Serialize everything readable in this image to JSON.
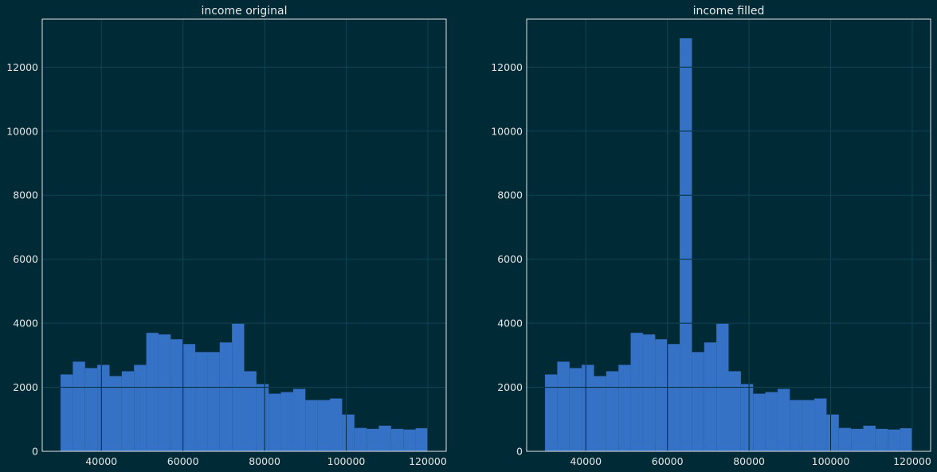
{
  "colors": {
    "background": "#002b36",
    "bar": "#3572c6",
    "grid": "#0f4553",
    "text": "#e6e6e6"
  },
  "chart_data": [
    {
      "type": "bar",
      "title": "income original",
      "xlabel": "",
      "ylabel": "",
      "xlim": [
        25500,
        124500
      ],
      "ylim": [
        0,
        13500
      ],
      "xticks": [
        40000,
        60000,
        80000,
        100000,
        120000
      ],
      "xtick_labels": [
        "40000",
        "60000",
        "80000",
        "100000",
        "120000"
      ],
      "yticks": [
        0,
        2000,
        4000,
        6000,
        8000,
        10000,
        12000
      ],
      "ytick_labels": [
        "0",
        "2000",
        "4000",
        "6000",
        "8000",
        "10000",
        "12000"
      ],
      "grid": true,
      "bin_start": 30000,
      "bin_width": 3000,
      "values": [
        2400,
        2800,
        2600,
        2700,
        2350,
        2500,
        2700,
        3700,
        3650,
        3500,
        3350,
        3100,
        3100,
        3400,
        4000,
        2500,
        2100,
        1800,
        1850,
        1950,
        1600,
        1600,
        1650,
        1150,
        730,
        700,
        800,
        700,
        680,
        720
      ]
    },
    {
      "type": "bar",
      "title": "income filled",
      "xlabel": "",
      "ylabel": "",
      "xlim": [
        25500,
        124500
      ],
      "ylim": [
        0,
        13500
      ],
      "xticks": [
        40000,
        60000,
        80000,
        100000,
        120000
      ],
      "xtick_labels": [
        "40000",
        "60000",
        "80000",
        "100000",
        "120000"
      ],
      "yticks": [
        0,
        2000,
        4000,
        6000,
        8000,
        10000,
        12000
      ],
      "ytick_labels": [
        "0",
        "2000",
        "4000",
        "6000",
        "8000",
        "10000",
        "12000"
      ],
      "grid": true,
      "bin_start": 30000,
      "bin_width": 3000,
      "values": [
        2400,
        2800,
        2600,
        2700,
        2350,
        2500,
        2700,
        3700,
        3650,
        3500,
        3350,
        12900,
        3100,
        3400,
        4000,
        2500,
        2100,
        1800,
        1850,
        1950,
        1600,
        1600,
        1650,
        1150,
        730,
        700,
        800,
        700,
        680,
        720
      ]
    }
  ]
}
